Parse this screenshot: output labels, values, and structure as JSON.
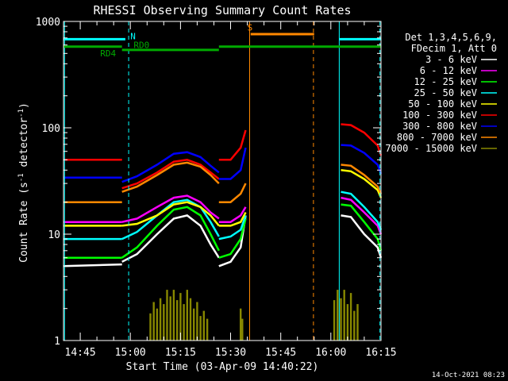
{
  "chart_data": {
    "type": "line",
    "title": "RHESSI Observing Summary Count Rates",
    "xlabel": "Start Time (03-Apr-09 14:40:22)",
    "ylabel": "Count Rate (s⁻¹ detector⁻¹)",
    "ylabel_parts": {
      "a": "Count Rate (s",
      "e1": "-1",
      "b": " detector",
      "e2": "-1",
      "c": ")"
    },
    "yscale": "log",
    "ylim": [
      1,
      1000
    ],
    "xlim": [
      160,
      255
    ],
    "x_unit": "minutes after 12:00 UT",
    "grid": false,
    "y_tick_labels": [
      {
        "value": 1,
        "label": "1"
      },
      {
        "value": 10,
        "label": "10"
      },
      {
        "value": 100,
        "label": "100"
      },
      {
        "value": 1000,
        "label": "1000"
      }
    ],
    "x_tick_labels": [
      {
        "value": 165,
        "label": "14:45"
      },
      {
        "value": 180,
        "label": "15:00"
      },
      {
        "value": 195,
        "label": "15:15"
      },
      {
        "value": 210,
        "label": "15:30"
      },
      {
        "value": 225,
        "label": "15:45"
      },
      {
        "value": 240,
        "label": "16:00"
      },
      {
        "value": 255,
        "label": "16:15"
      }
    ],
    "legend_header": [
      "Det 1,3,4,5,6,9,",
      "FDecim 1, Att 0"
    ],
    "legend_position": "right",
    "series": [
      {
        "name": "3 - 6 keV",
        "color": "#ffffff",
        "segments": [
          [
            [
              160,
              5
            ],
            [
              177.5,
              5.2
            ]
          ],
          [
            [
              177.5,
              5.5
            ],
            [
              182,
              6.5
            ],
            [
              188,
              10
            ],
            [
              193,
              14
            ],
            [
              197,
              15
            ],
            [
              201,
              12
            ],
            [
              204,
              8
            ],
            [
              206.5,
              6
            ]
          ],
          [
            [
              206.5,
              5
            ],
            [
              210,
              5.5
            ],
            [
              213,
              7.5
            ],
            [
              214.5,
              15
            ]
          ],
          [
            [
              243,
              15
            ],
            [
              246,
              14.5
            ],
            [
              250,
              10
            ],
            [
              254,
              7.5
            ],
            [
              256,
              6
            ]
          ]
        ]
      },
      {
        "name": "6 - 12 keV",
        "color": "#ff00ff",
        "segments": [
          [
            [
              160,
              13
            ],
            [
              177.5,
              13
            ]
          ],
          [
            [
              177.5,
              13
            ],
            [
              182,
              14
            ],
            [
              188,
              18
            ],
            [
              193,
              22
            ],
            [
              197,
              23
            ],
            [
              201,
              20
            ],
            [
              204,
              16
            ],
            [
              206.5,
              14
            ]
          ],
          [
            [
              206.5,
              13
            ],
            [
              210,
              13
            ],
            [
              213,
              15
            ],
            [
              214.5,
              18
            ]
          ],
          [
            [
              243,
              22
            ],
            [
              246,
              21
            ],
            [
              250,
              16
            ],
            [
              254,
              12
            ],
            [
              256,
              10
            ]
          ]
        ]
      },
      {
        "name": "12 - 25 keV",
        "color": "#00ff00",
        "segments": [
          [
            [
              160,
              6
            ],
            [
              177.5,
              6
            ]
          ],
          [
            [
              177.5,
              6
            ],
            [
              182,
              7.5
            ],
            [
              188,
              12
            ],
            [
              193,
              17
            ],
            [
              197,
              18
            ],
            [
              201,
              15
            ],
            [
              204,
              10
            ],
            [
              206.5,
              7
            ]
          ],
          [
            [
              206.5,
              6
            ],
            [
              210,
              6.5
            ],
            [
              213,
              9
            ],
            [
              214.5,
              14
            ]
          ],
          [
            [
              243,
              19
            ],
            [
              246,
              18.5
            ],
            [
              250,
              13
            ],
            [
              254,
              9
            ],
            [
              256,
              7
            ]
          ]
        ]
      },
      {
        "name": "25 - 50 keV",
        "color": "#00ffff",
        "segments": [
          [
            [
              160,
              9
            ],
            [
              177.5,
              9
            ]
          ],
          [
            [
              177.5,
              9
            ],
            [
              182,
              10.5
            ],
            [
              188,
              15
            ],
            [
              193,
              20
            ],
            [
              197,
              21
            ],
            [
              201,
              18
            ],
            [
              204,
              13
            ],
            [
              206.5,
              9.5
            ]
          ],
          [
            [
              206.5,
              9
            ],
            [
              210,
              9.5
            ],
            [
              213,
              11
            ],
            [
              214.5,
              15
            ]
          ],
          [
            [
              243,
              25
            ],
            [
              246,
              24
            ],
            [
              250,
              18
            ],
            [
              254,
              13
            ],
            [
              256,
              11
            ]
          ]
        ]
      },
      {
        "name": "50 - 100 keV",
        "color": "#ffff00",
        "segments": [
          [
            [
              160,
              12
            ],
            [
              177.5,
              12
            ]
          ],
          [
            [
              177.5,
              12
            ],
            [
              182,
              12.5
            ],
            [
              188,
              15
            ],
            [
              193,
              19
            ],
            [
              197,
              20
            ],
            [
              201,
              18
            ],
            [
              204,
              15
            ],
            [
              206.5,
              12
            ]
          ],
          [
            [
              206.5,
              12
            ],
            [
              210,
              12
            ],
            [
              213,
              13
            ],
            [
              214.5,
              16
            ]
          ],
          [
            [
              243,
              40
            ],
            [
              246,
              39
            ],
            [
              250,
              33
            ],
            [
              254,
              26
            ],
            [
              256,
              22
            ]
          ]
        ]
      },
      {
        "name": "100 - 300 keV",
        "color": "#ff0000",
        "segments": [
          [
            [
              160,
              50
            ],
            [
              177.5,
              50
            ]
          ],
          [
            [
              177.5,
              27
            ],
            [
              182,
              30
            ],
            [
              188,
              38
            ],
            [
              193,
              48
            ],
            [
              197,
              50
            ],
            [
              201,
              45
            ],
            [
              204,
              38
            ],
            [
              206.5,
              33
            ]
          ],
          [
            [
              206.5,
              50
            ],
            [
              210,
              50
            ],
            [
              213,
              65
            ],
            [
              214.5,
              95
            ]
          ],
          [
            [
              243,
              108
            ],
            [
              246,
              106
            ],
            [
              250,
              90
            ],
            [
              254,
              68
            ],
            [
              256,
              55
            ]
          ]
        ]
      },
      {
        "name": "300 - 800 keV",
        "color": "#0000ff",
        "segments": [
          [
            [
              160,
              34
            ],
            [
              177.5,
              34
            ]
          ],
          [
            [
              177.5,
              31
            ],
            [
              182,
              35
            ],
            [
              188,
              45
            ],
            [
              193,
              57
            ],
            [
              197,
              59
            ],
            [
              201,
              53
            ],
            [
              204,
              44
            ],
            [
              206.5,
              38
            ]
          ],
          [
            [
              206.5,
              33
            ],
            [
              210,
              33
            ],
            [
              213,
              40
            ],
            [
              214.5,
              65
            ]
          ],
          [
            [
              243,
              69
            ],
            [
              246,
              68
            ],
            [
              250,
              58
            ],
            [
              254,
              45
            ],
            [
              256,
              37
            ]
          ]
        ]
      },
      {
        "name": "800 - 7000 keV",
        "color": "#ff8800",
        "segments": [
          [
            [
              160,
              20
            ],
            [
              177.5,
              20
            ]
          ],
          [
            [
              177.5,
              25
            ],
            [
              182,
              28
            ],
            [
              188,
              36
            ],
            [
              193,
              45
            ],
            [
              197,
              47
            ],
            [
              201,
              43
            ],
            [
              204,
              36
            ],
            [
              206.5,
              30
            ]
          ],
          [
            [
              206.5,
              20
            ],
            [
              210,
              20
            ],
            [
              213,
              24
            ],
            [
              214.5,
              30
            ]
          ],
          [
            [
              243,
              45
            ],
            [
              246,
              44
            ],
            [
              250,
              36
            ],
            [
              254,
              28
            ],
            [
              256,
              24
            ]
          ]
        ]
      },
      {
        "name": "7000 - 15000 keV",
        "color": "#888800",
        "bars": [
          [
            186,
            1.8
          ],
          [
            187,
            2.3
          ],
          [
            188,
            2.0
          ],
          [
            189,
            2.5
          ],
          [
            190,
            2.2
          ],
          [
            191,
            3.0
          ],
          [
            192,
            2.6
          ],
          [
            193,
            3.0
          ],
          [
            194,
            2.4
          ],
          [
            195,
            2.8
          ],
          [
            196,
            2.2
          ],
          [
            197,
            3.0
          ],
          [
            198,
            2.5
          ],
          [
            199,
            2.0
          ],
          [
            200,
            2.3
          ],
          [
            201,
            1.7
          ],
          [
            202,
            1.9
          ],
          [
            203,
            1.6
          ],
          [
            213,
            2.0
          ],
          [
            213.5,
            1.6
          ],
          [
            241,
            2.4
          ],
          [
            242,
            3.0
          ],
          [
            243,
            2.5
          ],
          [
            244,
            3.0
          ],
          [
            245,
            2.2
          ],
          [
            246,
            2.8
          ],
          [
            247,
            1.9
          ],
          [
            248,
            2.2
          ]
        ]
      }
    ],
    "annotations": [
      {
        "text": "N",
        "x": 180,
        "y": 680,
        "color": "#00ffff"
      },
      {
        "text": "RD0",
        "x": 181,
        "y": 560,
        "color": "#00aa00"
      },
      {
        "text": "RD4",
        "x": 171,
        "y": 470,
        "color": "#00aa00"
      },
      {
        "text": "S",
        "x": 215,
        "y": 820,
        "color": "#ff8800"
      }
    ],
    "flag_bars": [
      {
        "name": "night",
        "color": "#00ffff",
        "y": 680,
        "ranges": [
          [
            160,
            178.5
          ],
          [
            242.5,
            255
          ]
        ]
      },
      {
        "name": "saa",
        "color": "#ff8800",
        "y": 760,
        "ranges": [
          [
            216,
            235
          ]
        ]
      },
      {
        "name": "decim-upper",
        "color": "#00aa00",
        "y": 580,
        "ranges": [
          [
            160,
            177.5
          ],
          [
            206.5,
            255
          ]
        ]
      },
      {
        "name": "decim-lower",
        "color": "#00aa00",
        "y": 540,
        "ranges": [
          [
            177.5,
            206.5
          ]
        ]
      }
    ],
    "vertical_markers": [
      {
        "x": 160.3,
        "color": "#00ffff",
        "style": "solid"
      },
      {
        "x": 179.5,
        "color": "#00ffff",
        "style": "dashed"
      },
      {
        "x": 242.5,
        "color": "#00ffff",
        "style": "solid"
      },
      {
        "x": 254.7,
        "color": "#00ffff",
        "style": "dashed"
      },
      {
        "x": 215.7,
        "color": "#ff8800",
        "style": "solid"
      },
      {
        "x": 234.8,
        "color": "#ff8800",
        "style": "dashed"
      }
    ]
  },
  "footer": {
    "timestamp": "14-Oct-2021 08:23"
  }
}
